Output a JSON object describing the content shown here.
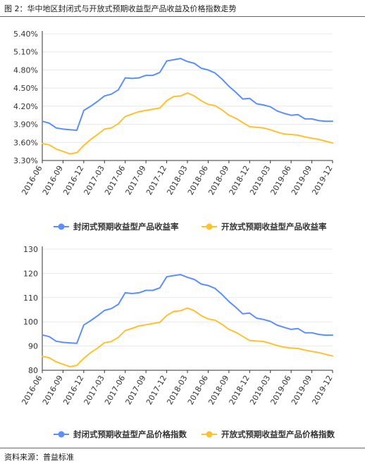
{
  "figure_title": "图 2：华中地区封闭式与开放式预期收益型产品收益及价格指数走势",
  "source": "资料来源：普益标准",
  "colors": {
    "closed": "#5B8FF9",
    "open": "#FFC12D",
    "grid": "#e8e8e8",
    "axis": "#333333"
  },
  "chart_data": [
    {
      "type": "line",
      "title": "",
      "xlabel": "",
      "ylabel": "",
      "categories": [
        "2016-06",
        "2016-07",
        "2016-08",
        "2016-09",
        "2016-10",
        "2016-11",
        "2016-12",
        "2017-01",
        "2017-02",
        "2017-03",
        "2017-04",
        "2017-05",
        "2017-06",
        "2017-07",
        "2017-08",
        "2017-09",
        "2017-10",
        "2017-11",
        "2017-12",
        "2018-01",
        "2018-02",
        "2018-03",
        "2018-04",
        "2018-05",
        "2018-06",
        "2018-07",
        "2018-08",
        "2018-09",
        "2018-10",
        "2018-11",
        "2018-12",
        "2019-01",
        "2019-02",
        "2019-03",
        "2019-04",
        "2019-05",
        "2019-06",
        "2019-07",
        "2019-08",
        "2019-09",
        "2019-10",
        "2019-11",
        "2019-12"
      ],
      "tick_labels": [
        "2016-06",
        "2016-09",
        "2016-12",
        "2017-03",
        "2017-06",
        "2017-09",
        "2017-12",
        "2018-03",
        "2018-06",
        "2018-09",
        "2018-12",
        "2019-03",
        "2019-06",
        "2019-09",
        "2019-12"
      ],
      "y_tick_labels": [
        "3.30%",
        "3.60%",
        "3.90%",
        "4.20%",
        "4.50%",
        "4.80%",
        "5.10%",
        "5.40%"
      ],
      "ylim": [
        3.3,
        5.4
      ],
      "grid": true,
      "legend_position": "bottom",
      "series": [
        {
          "name": "封闭式预期收益型产品收益率",
          "color": "#5B8FF9",
          "values": [
            3.95,
            3.92,
            3.84,
            3.82,
            3.81,
            3.8,
            4.13,
            4.2,
            4.28,
            4.37,
            4.4,
            4.47,
            4.67,
            4.66,
            4.67,
            4.71,
            4.71,
            4.76,
            4.95,
            4.97,
            4.99,
            4.94,
            4.91,
            4.83,
            4.8,
            4.75,
            4.65,
            4.53,
            4.43,
            4.32,
            4.33,
            4.24,
            4.22,
            4.19,
            4.12,
            4.08,
            4.05,
            4.06,
            3.99,
            3.99,
            3.96,
            3.95,
            3.95
          ]
        },
        {
          "name": "开放式预期收益型产品收益率",
          "color": "#FFC12D",
          "values": [
            3.58,
            3.56,
            3.49,
            3.45,
            3.41,
            3.43,
            3.55,
            3.65,
            3.73,
            3.82,
            3.84,
            3.91,
            4.03,
            4.07,
            4.11,
            4.13,
            4.15,
            4.17,
            4.29,
            4.36,
            4.37,
            4.42,
            4.37,
            4.29,
            4.23,
            4.21,
            4.14,
            4.05,
            4.0,
            3.93,
            3.86,
            3.85,
            3.84,
            3.81,
            3.77,
            3.74,
            3.73,
            3.72,
            3.69,
            3.67,
            3.65,
            3.62,
            3.59
          ]
        }
      ]
    },
    {
      "type": "line",
      "title": "",
      "xlabel": "",
      "ylabel": "",
      "categories": [
        "2016-06",
        "2016-07",
        "2016-08",
        "2016-09",
        "2016-10",
        "2016-11",
        "2016-12",
        "2017-01",
        "2017-02",
        "2017-03",
        "2017-04",
        "2017-05",
        "2017-06",
        "2017-07",
        "2017-08",
        "2017-09",
        "2017-10",
        "2017-11",
        "2017-12",
        "2018-01",
        "2018-02",
        "2018-03",
        "2018-04",
        "2018-05",
        "2018-06",
        "2018-07",
        "2018-08",
        "2018-09",
        "2018-10",
        "2018-11",
        "2018-12",
        "2019-01",
        "2019-02",
        "2019-03",
        "2019-04",
        "2019-05",
        "2019-06",
        "2019-07",
        "2019-08",
        "2019-09",
        "2019-10",
        "2019-11",
        "2019-12"
      ],
      "tick_labels": [
        "2016-06",
        "2016-09",
        "2016-12",
        "2017-03",
        "2017-06",
        "2017-09",
        "2017-12",
        "2018-03",
        "2018-06",
        "2018-09",
        "2018-12",
        "2019-03",
        "2019-06",
        "2019-09",
        "2019-12"
      ],
      "y_tick_labels": [
        "80",
        "90",
        "100",
        "110",
        "120",
        "130"
      ],
      "ylim": [
        80,
        130
      ],
      "grid": true,
      "legend_position": "bottom",
      "series": [
        {
          "name": "封闭式预期收益型产品价格指数",
          "color": "#5B8FF9",
          "values": [
            94.6,
            93.9,
            92.0,
            91.5,
            91.3,
            91.1,
            98.7,
            100.5,
            102.5,
            104.7,
            105.5,
            107.2,
            112.0,
            111.7,
            112.0,
            113.0,
            113.0,
            114.0,
            118.6,
            119.1,
            119.5,
            118.4,
            117.5,
            115.6,
            115.0,
            113.8,
            111.3,
            108.4,
            106.0,
            103.3,
            103.6,
            101.5,
            101.0,
            100.2,
            98.6,
            97.7,
            96.9,
            97.2,
            95.5,
            95.5,
            94.8,
            94.5,
            94.5
          ]
        },
        {
          "name": "开放式预期收益型产品价格指数",
          "color": "#FFC12D",
          "values": [
            85.7,
            85.2,
            83.5,
            82.5,
            81.5,
            82.0,
            84.9,
            87.3,
            89.2,
            91.4,
            91.9,
            93.6,
            96.4,
            97.3,
            98.3,
            98.8,
            99.3,
            99.8,
            102.6,
            104.3,
            104.6,
            105.7,
            104.6,
            102.6,
            101.2,
            100.7,
            99.0,
            96.9,
            95.7,
            94.0,
            92.3,
            92.1,
            91.9,
            91.1,
            90.2,
            89.5,
            89.2,
            89.0,
            88.3,
            87.8,
            87.3,
            86.6,
            85.9
          ]
        }
      ]
    }
  ]
}
